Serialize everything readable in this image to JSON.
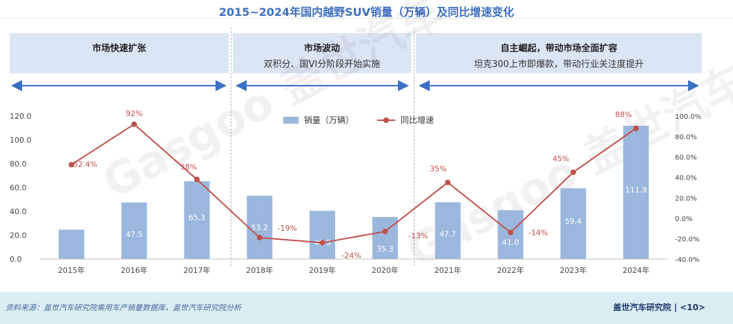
{
  "title": "2015~2024年国内越野SUV销量（万辆）及同比增速变化",
  "phases": [
    {
      "title": "市场快速扩张",
      "subtitle": ""
    },
    {
      "title": "市场波动",
      "subtitle": "双积分、国VI分阶段开始实施"
    },
    {
      "title": "自主崛起，带动市场全面扩容",
      "subtitle": "坦克300上市即爆款，带动行业关注度提升"
    }
  ],
  "legend": {
    "bar_label": "销量（万辆）",
    "line_label": "同比增速"
  },
  "watermark": "Gasgoo 盖世汽车",
  "footer": {
    "source": "资料来源：盖世汽车研究院乘用车产销量数据库，盖世汽车研究院分析",
    "brand": "盖世汽车研究院 | <10>"
  },
  "colors": {
    "bar": "#9bb7de",
    "line": "#c0504d",
    "phase_bg": "#dbe6f5",
    "arrow": "#3b6fc4"
  },
  "chart_data": {
    "type": "bar",
    "categories": [
      "2015年",
      "2016年",
      "2017年",
      "2018年",
      "2019年",
      "2020年",
      "2021年",
      "2022年",
      "2023年",
      "2024年"
    ],
    "series": [
      {
        "name": "销量（万辆）",
        "type": "bar",
        "axis": "left",
        "values": [
          24.7,
          47.5,
          65.3,
          53.2,
          40.5,
          35.3,
          47.7,
          41.0,
          59.4,
          111.9
        ],
        "labels": [
          "24.7",
          "47.5",
          "65.3",
          "53.2",
          "40.5",
          "35.3",
          "47.7",
          "41.0",
          "59.4",
          "111.9"
        ]
      },
      {
        "name": "同比增速",
        "type": "line",
        "axis": "right",
        "values": [
          52.4,
          92,
          38,
          -19,
          -24,
          -13,
          35,
          -14,
          45,
          88
        ],
        "labels": [
          "52.4%",
          "92%",
          "38%",
          "-19%",
          "-24%",
          "-13%",
          "35%",
          "-14%",
          "45%",
          "88%"
        ]
      }
    ],
    "y_left": {
      "min": 0,
      "max": 120,
      "ticks": [
        "0.0",
        "20.0",
        "40.0",
        "60.0",
        "80.0",
        "100.0",
        "120.0"
      ]
    },
    "y_right": {
      "min": -40,
      "max": 100,
      "ticks": [
        "-40.0%",
        "-20.0%",
        "0.0%",
        "20.0%",
        "40.0%",
        "60.0%",
        "80.0%",
        "100.0%"
      ]
    },
    "grid": false,
    "legend_position": "top-center"
  }
}
